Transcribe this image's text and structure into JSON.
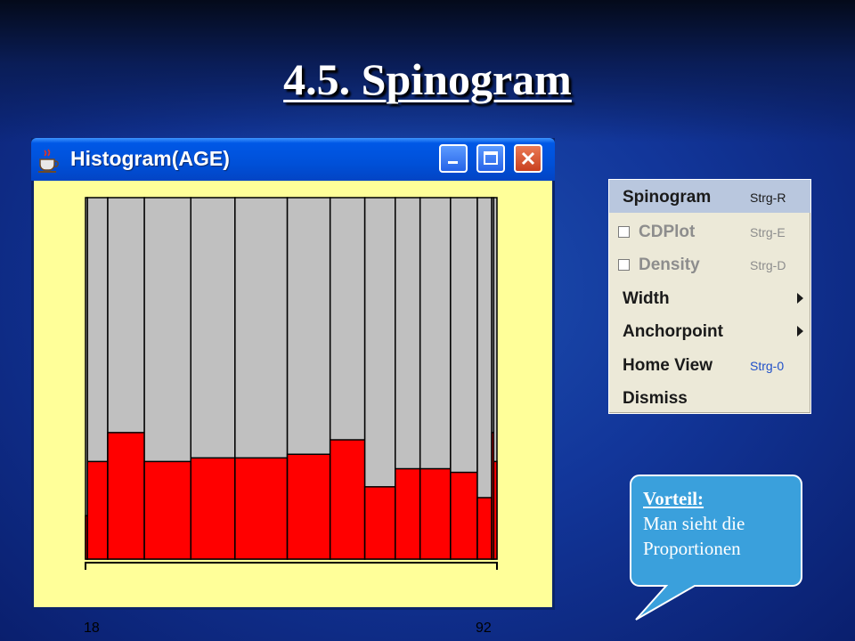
{
  "slide": {
    "title": "4.5. Spinogram"
  },
  "window": {
    "title": "Histogram(AGE)",
    "buttons": {
      "minimize": "minimize",
      "maximize": "maximize",
      "close": "close"
    }
  },
  "chart_data": {
    "type": "bar",
    "description_kind": "spinogram",
    "x_tick_labels": [
      "18",
      "92"
    ],
    "bars": [
      {
        "rel_width": 0.6,
        "red_fraction": 0.12
      },
      {
        "rel_width": 6.2,
        "red_fraction": 0.27
      },
      {
        "rel_width": 11.2,
        "red_fraction": 0.35
      },
      {
        "rel_width": 14.2,
        "red_fraction": 0.27
      },
      {
        "rel_width": 13.5,
        "red_fraction": 0.28
      },
      {
        "rel_width": 16.0,
        "red_fraction": 0.28
      },
      {
        "rel_width": 13.1,
        "red_fraction": 0.29
      },
      {
        "rel_width": 10.6,
        "red_fraction": 0.33
      },
      {
        "rel_width": 9.3,
        "red_fraction": 0.2
      },
      {
        "rel_width": 7.6,
        "red_fraction": 0.25
      },
      {
        "rel_width": 9.3,
        "red_fraction": 0.25
      },
      {
        "rel_width": 8.2,
        "red_fraction": 0.24
      },
      {
        "rel_width": 4.4,
        "red_fraction": 0.17
      },
      {
        "rel_width": 0.6,
        "red_fraction": 0.35
      },
      {
        "rel_width": 1.0,
        "red_fraction": 0.27
      }
    ],
    "colors": {
      "highlight": "#ff0000",
      "base": "#c0c0c0",
      "background": "#ffff99"
    }
  },
  "menu": {
    "items": [
      {
        "label": "Spinogram",
        "shortcut": "Strg-R",
        "selected": true,
        "disabled": false,
        "checkbox": false,
        "submenu": false
      },
      {
        "label": "CDPlot",
        "shortcut": "Strg-E",
        "selected": false,
        "disabled": true,
        "checkbox": true,
        "submenu": false
      },
      {
        "label": "Density",
        "shortcut": "Strg-D",
        "selected": false,
        "disabled": true,
        "checkbox": true,
        "submenu": false
      },
      {
        "label": "Width",
        "shortcut": "",
        "selected": false,
        "disabled": false,
        "checkbox": false,
        "submenu": true
      },
      {
        "label": "Anchorpoint",
        "shortcut": "",
        "selected": false,
        "disabled": false,
        "checkbox": false,
        "submenu": true
      },
      {
        "label": "Home View",
        "shortcut": "Strg-0",
        "selected": false,
        "disabled": false,
        "checkbox": false,
        "submenu": false
      },
      {
        "label": "Dismiss",
        "shortcut": "",
        "selected": false,
        "disabled": false,
        "checkbox": false,
        "submenu": false
      }
    ]
  },
  "callout": {
    "heading": "Vorteil:",
    "line1": "Man sieht die",
    "line2": "Proportionen",
    "fill": "#3aa0dc"
  }
}
